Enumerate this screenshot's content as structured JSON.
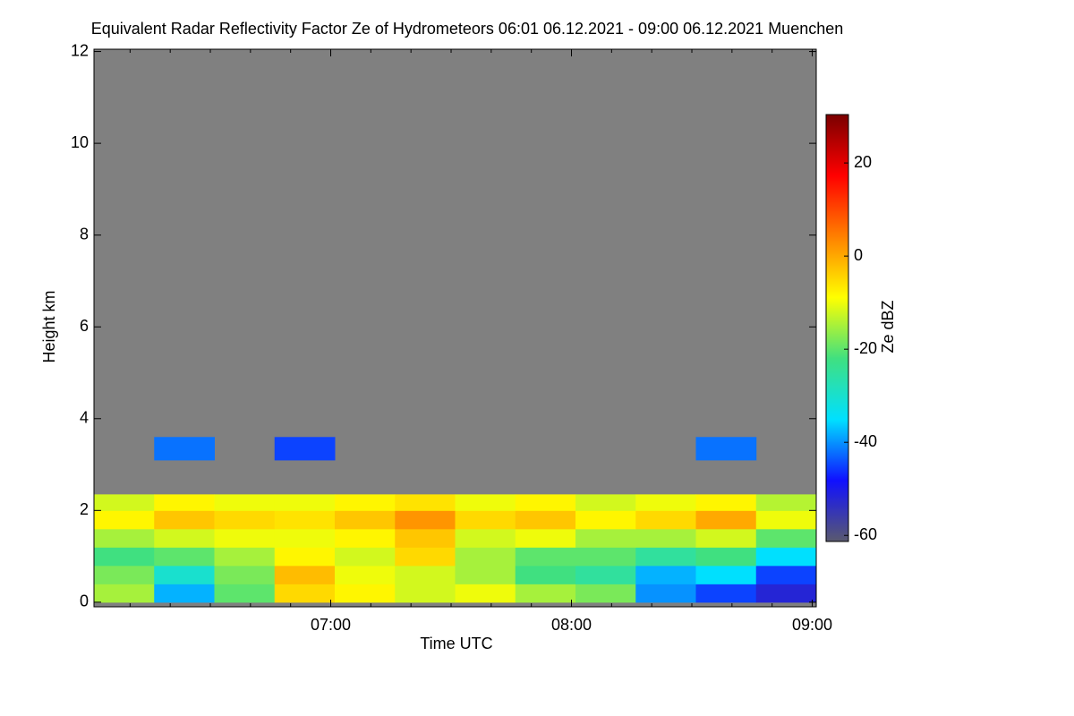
{
  "chart_data": {
    "type": "heatmap",
    "title": "Equivalent Radar Reflectivity Factor Ze of Hydrometeors   06:01 06.12.2021 - 09:00 06.12.2021 Muenchen",
    "xlabel": "Time UTC",
    "ylabel": "Height km",
    "colorbar_label": "Ze dBZ",
    "background": "#808080",
    "xlim": [
      361,
      541
    ],
    "xticks": [
      {
        "value": 420,
        "label": "07:00"
      },
      {
        "value": 480,
        "label": "08:00"
      },
      {
        "value": 540,
        "label": "09:00"
      }
    ],
    "xminorticks": [
      370,
      380,
      390,
      400,
      410,
      430,
      440,
      450,
      460,
      470,
      490,
      500,
      510,
      520,
      530
    ],
    "ylim": [
      -0.1,
      12.05
    ],
    "yticks": [
      0,
      2,
      4,
      6,
      8,
      10,
      12
    ],
    "clim": [
      -61.3,
      30.4
    ],
    "cticks": [
      -60,
      -40,
      -20,
      0,
      20
    ],
    "colormap": [
      "#5a5a6e",
      "#1010ff",
      "#00e0ff",
      "#40e080",
      "#ffff00",
      "#ff8000",
      "#ff0000",
      "#7a0000"
    ],
    "x_edges": [
      361,
      376,
      391,
      406,
      421,
      436,
      451,
      466,
      481,
      496,
      511,
      526,
      541
    ],
    "y_edges": [
      0,
      0.4,
      0.8,
      1.2,
      1.6,
      2.0,
      2.35,
      3.1,
      3.6
    ],
    "z": [
      [
        -15,
        -38,
        -20,
        -5,
        -8,
        -12,
        -10,
        -15,
        -18,
        -40,
        -45,
        -52
      ],
      [
        -18,
        -30,
        -18,
        -2,
        -10,
        -12,
        -15,
        -22,
        -25,
        -38,
        -35,
        -45
      ],
      [
        -22,
        -20,
        -15,
        -8,
        -12,
        -5,
        -15,
        -20,
        -20,
        -25,
        -22,
        -35
      ],
      [
        -15,
        -12,
        -10,
        -10,
        -8,
        -3,
        -12,
        -10,
        -15,
        -15,
        -12,
        -20
      ],
      [
        -8,
        -3,
        -5,
        -6,
        -3,
        2,
        -5,
        -3,
        -8,
        -5,
        0,
        -10
      ],
      [
        -12,
        -8,
        -10,
        -10,
        -8,
        -6,
        -10,
        -8,
        -12,
        -10,
        -8,
        -14
      ],
      [
        null,
        null,
        null,
        null,
        null,
        null,
        null,
        null,
        null,
        null,
        null,
        null
      ],
      [
        null,
        -42,
        null,
        -45,
        null,
        null,
        null,
        null,
        null,
        null,
        -42,
        null
      ]
    ]
  }
}
